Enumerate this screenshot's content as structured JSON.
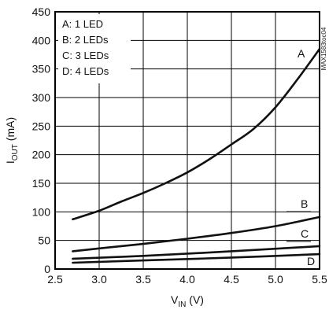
{
  "chart_data": {
    "type": "line",
    "xlabel_main": "V",
    "xlabel_sub": "IN",
    "xlabel_unit": " (V)",
    "ylabel_main": "I",
    "ylabel_sub": "OUT",
    "ylabel_unit": " (mA)",
    "xlim": [
      2.5,
      5.5
    ],
    "ylim": [
      0,
      450
    ],
    "xticks": [
      2.5,
      3.0,
      3.5,
      4.0,
      4.5,
      5.0,
      5.5
    ],
    "xtick_labels": [
      "2.5",
      "3.0",
      "3.5",
      "4.0",
      "4.5",
      "5.0",
      "5.5"
    ],
    "yticks": [
      0,
      50,
      100,
      150,
      200,
      250,
      300,
      350,
      400,
      450
    ],
    "ytick_labels": [
      "0",
      "50",
      "100",
      "150",
      "200",
      "250",
      "300",
      "350",
      "400",
      "450"
    ],
    "grid": true,
    "legend_placement": "top-left",
    "legend": [
      "A: 1 LED",
      "B: 2 LEDs",
      "C: 3 LEDs",
      "D: 4 LEDs"
    ],
    "side_label": "MAX1583toc04",
    "series": [
      {
        "label": "A",
        "x": [
          2.7,
          3.0,
          3.25,
          3.5,
          3.75,
          4.0,
          4.25,
          4.5,
          4.75,
          5.0,
          5.25,
          5.5
        ],
        "y": [
          87,
          102,
          118,
          133,
          150,
          169,
          192,
          218,
          245,
          283,
          332,
          385
        ]
      },
      {
        "label": "B",
        "x": [
          2.7,
          3.0,
          3.5,
          4.0,
          4.5,
          5.0,
          5.5
        ],
        "y": [
          31,
          36,
          44,
          53,
          63,
          75,
          91
        ]
      },
      {
        "label": "C",
        "x": [
          2.7,
          3.5,
          4.5,
          5.5
        ],
        "y": [
          18,
          23,
          31,
          40
        ]
      },
      {
        "label": "D",
        "x": [
          2.7,
          3.5,
          4.5,
          5.5
        ],
        "y": [
          11,
          15,
          20,
          26
        ]
      }
    ]
  }
}
